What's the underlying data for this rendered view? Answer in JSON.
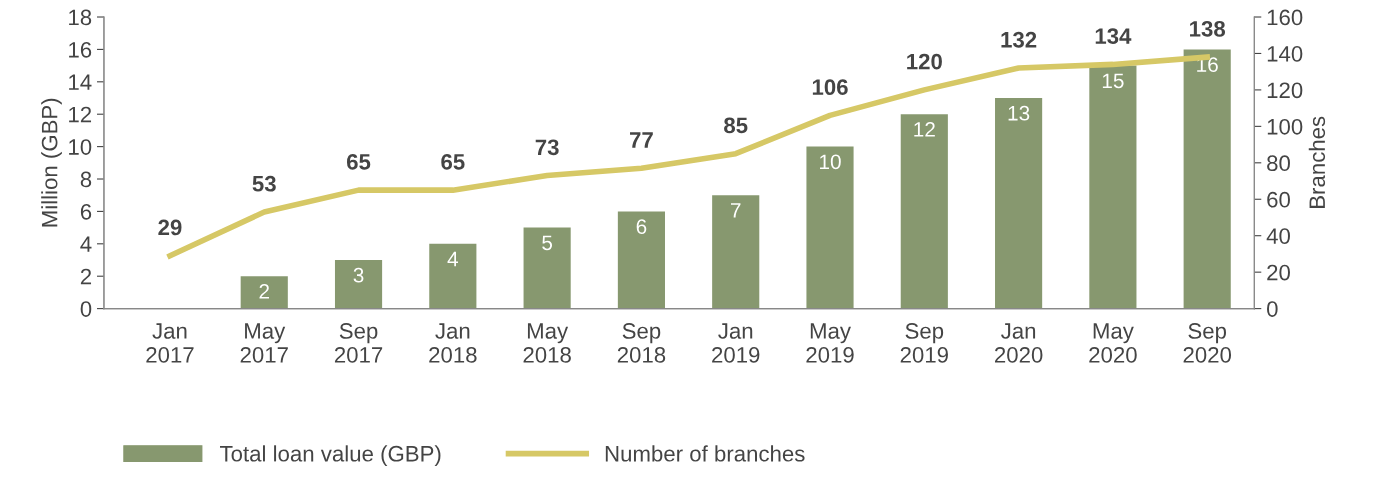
{
  "chart_data": {
    "type": "bar",
    "categories": [
      "Jan\n2017",
      "May\n2017",
      "Sep\n2017",
      "Jan\n2018",
      "May\n2018",
      "Sep\n2018",
      "Jan\n2019",
      "May\n2019",
      "Sep\n2019",
      "Jan\n2020",
      "May\n2020",
      "Sep\n2020"
    ],
    "series": [
      {
        "name": "Total loan value (GBP)",
        "color": "#87986f",
        "values": [
          null,
          2,
          3,
          4,
          5,
          6,
          7,
          10,
          12,
          13,
          15,
          16
        ]
      },
      {
        "name": "Number of branches",
        "type": "line",
        "axis": "y2",
        "color": "#d6c866",
        "values": [
          29,
          53,
          65,
          65,
          73,
          77,
          85,
          106,
          120,
          132,
          134,
          138
        ]
      }
    ],
    "ylabel": "Million (GBP)",
    "y2label": "Branches",
    "ylim": [
      0,
      18
    ],
    "yticks": [
      0,
      2,
      4,
      6,
      8,
      10,
      12,
      14,
      16,
      18
    ],
    "y2lim": [
      0,
      160
    ],
    "y2ticks": [
      0,
      20,
      40,
      60,
      80,
      100,
      120,
      140,
      160
    ],
    "data_labels": true,
    "grid": false,
    "legend": "bottom left",
    "marker": "none",
    "line_style": "solid"
  }
}
